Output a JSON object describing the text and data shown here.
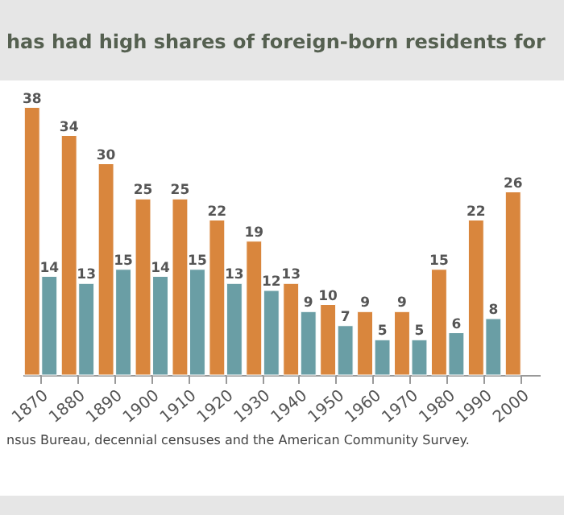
{
  "chart_data": {
    "type": "bar",
    "title": "has had high shares of foreign-born residents for",
    "categories": [
      "1870",
      "1880",
      "1890",
      "1900",
      "1910",
      "1920",
      "1930",
      "1940",
      "1950",
      "1960",
      "1970",
      "1980",
      "1990",
      "2000"
    ],
    "series": [
      {
        "color": "#d9863d",
        "values": [
          38,
          34,
          30,
          25,
          25,
          22,
          19,
          13,
          10,
          9,
          9,
          15,
          22,
          26
        ]
      },
      {
        "color": "#6a9ea5",
        "values": [
          14,
          13,
          15,
          14,
          15,
          13,
          12,
          9,
          7,
          5,
          5,
          6,
          8,
          null
        ]
      }
    ],
    "data_labels": true,
    "annotations": [
      "nsus Bureau, decennial censuses and the American Community Survey."
    ]
  }
}
